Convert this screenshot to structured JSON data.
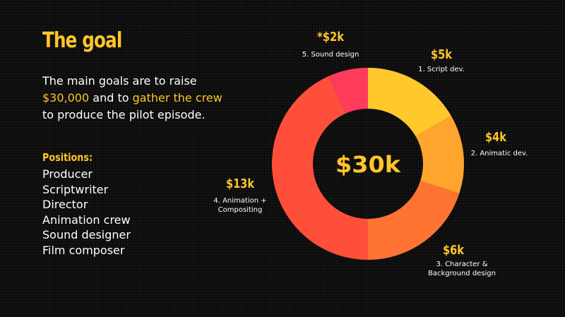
{
  "slide": {
    "title": "The goal",
    "intro": {
      "part1": "The main goals are to raise",
      "amount": "$30,000",
      "part2": " and to ",
      "crew": "gather the crew",
      "part3": "to produce the pilot episode."
    },
    "positions_title": "Positions:",
    "positions": [
      "Producer",
      "Scriptwriter",
      "Director",
      "Animation crew",
      "Sound designer",
      "Film composer"
    ]
  },
  "chart_data": {
    "type": "pie",
    "total_label": "$30k",
    "slices": [
      {
        "value_label": "$5k",
        "label": [
          "1. Script dev."
        ],
        "value": 5,
        "color": "#ffc92e"
      },
      {
        "value_label": "$4k",
        "label": [
          "2. Animatic dev."
        ],
        "value": 4,
        "color": "#ffa52e"
      },
      {
        "value_label": "$6k",
        "label": [
          "3. Character &",
          "Background design"
        ],
        "value": 6,
        "color": "#ff7433"
      },
      {
        "value_label": "$13k",
        "label": [
          "4. Animation +",
          "Compositing"
        ],
        "value": 13,
        "color": "#ff4f3b"
      },
      {
        "value_label": "*$2k",
        "label": [
          "5. Sound design"
        ],
        "value": 2,
        "color": "#ff3b5c"
      }
    ]
  }
}
